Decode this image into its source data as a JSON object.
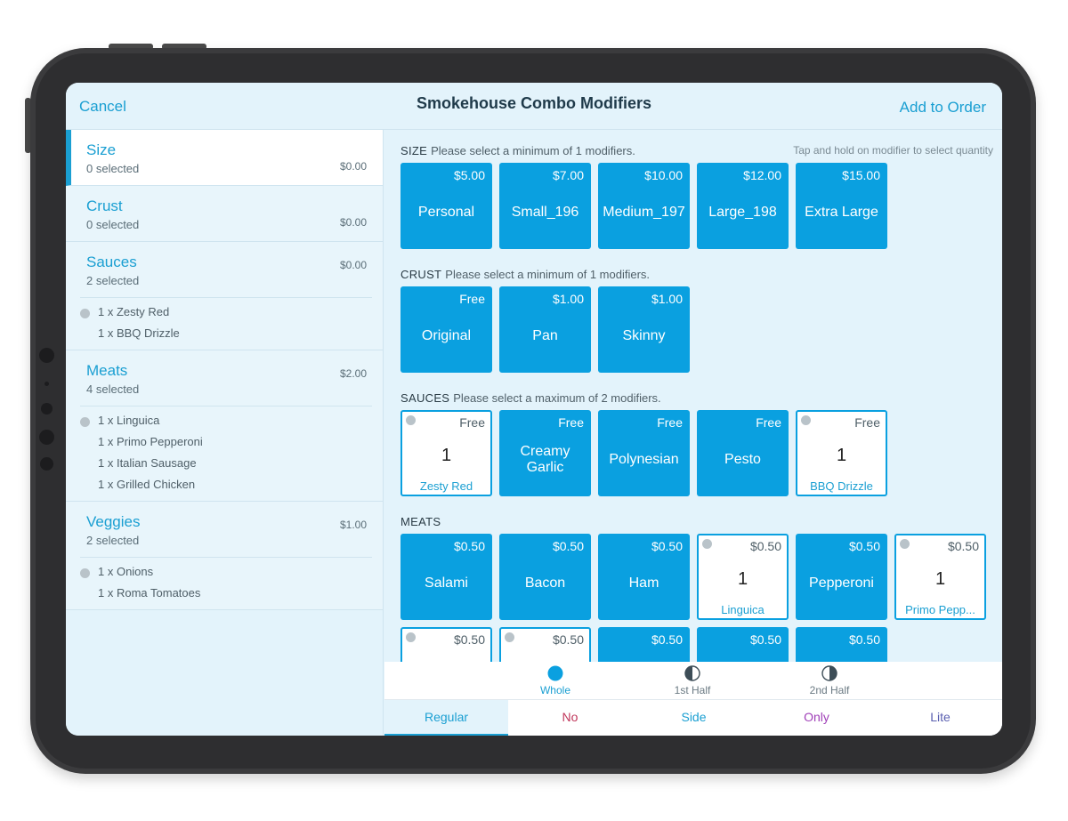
{
  "header": {
    "cancel_label": "Cancel",
    "title": "Smokehouse Combo Modifiers",
    "add_label": "Add to Order"
  },
  "sidebar": {
    "groups": [
      {
        "name": "Size",
        "selected": "0 selected",
        "price": "$0.00",
        "items": []
      },
      {
        "name": "Crust",
        "selected": "0 selected",
        "price": "$0.00",
        "items": []
      },
      {
        "name": "Sauces",
        "selected": "2 selected",
        "price": "$0.00",
        "items": [
          "1 x Zesty Red",
          "1 x BBQ Drizzle"
        ]
      },
      {
        "name": "Meats",
        "selected": "4 selected",
        "price": "$2.00",
        "items": [
          "1 x Linguica",
          "1 x Primo Pepperoni",
          "1 x Italian Sausage",
          "1 x Grilled Chicken"
        ]
      },
      {
        "name": "Veggies",
        "selected": "2 selected",
        "price": "$1.00",
        "items": [
          "1 x Onions",
          "1 x Roma Tomatoes"
        ]
      }
    ]
  },
  "main": {
    "hint": "Tap and hold on modifier to select quantity",
    "sections": {
      "size": {
        "title": "SIZE",
        "rule": "Please select a minimum of 1 modifiers.",
        "tiles": [
          {
            "name": "Personal",
            "price": "$5.00"
          },
          {
            "name": "Small_196",
            "price": "$7.00"
          },
          {
            "name": "Medium_197",
            "price": "$10.00"
          },
          {
            "name": "Large_198",
            "price": "$12.00"
          },
          {
            "name": "Extra Large",
            "price": "$15.00"
          }
        ]
      },
      "crust": {
        "title": "CRUST",
        "rule": "Please select a minimum of 1 modifiers.",
        "tiles": [
          {
            "name": "Original",
            "price": "Free"
          },
          {
            "name": "Pan",
            "price": "$1.00"
          },
          {
            "name": "Skinny",
            "price": "$1.00"
          }
        ]
      },
      "sauces": {
        "title": "SAUCES",
        "rule": "Please select a maximum of 2 modifiers.",
        "tiles": [
          {
            "name": "Zesty Red",
            "price": "Free",
            "qty": "1"
          },
          {
            "name": "Creamy Garlic",
            "price": "Free"
          },
          {
            "name": "Polynesian",
            "price": "Free"
          },
          {
            "name": "Pesto",
            "price": "Free"
          },
          {
            "name": "BBQ Drizzle",
            "price": "Free",
            "qty": "1"
          }
        ]
      },
      "meats": {
        "title": "MEATS",
        "rule": "",
        "tiles": [
          {
            "name": "Salami",
            "price": "$0.50"
          },
          {
            "name": "Bacon",
            "price": "$0.50"
          },
          {
            "name": "Ham",
            "price": "$0.50"
          },
          {
            "name": "Linguica",
            "price": "$0.50",
            "qty": "1"
          },
          {
            "name": "Pepperoni",
            "price": "$0.50"
          },
          {
            "name": "Primo Pepp...",
            "price": "$0.50",
            "qty": "1"
          }
        ],
        "row2_prices": [
          "$0.50",
          "$0.50",
          "$0.50",
          "$0.50",
          "$0.50"
        ]
      }
    }
  },
  "portions": [
    {
      "label": "Whole"
    },
    {
      "label": "1st Half"
    },
    {
      "label": "2nd Half"
    }
  ],
  "modes": [
    {
      "label": "Regular",
      "color": "#1a9fd2"
    },
    {
      "label": "No",
      "color": "#c0365a"
    },
    {
      "label": "Side",
      "color": "#1a9fd2"
    },
    {
      "label": "Only",
      "color": "#a040b8"
    },
    {
      "label": "Lite",
      "color": "#5a5fb0"
    }
  ],
  "colors": {
    "accent": "#1a9fd2",
    "tile": "#0aa0e0",
    "background": "#e3f3fb"
  }
}
